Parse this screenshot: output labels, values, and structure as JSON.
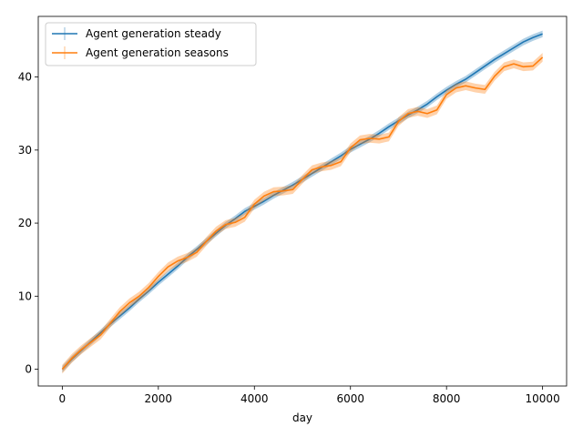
{
  "chart_data": {
    "type": "line",
    "title": "",
    "xlabel": "day",
    "ylabel": "",
    "xlim": [
      -500,
      10500
    ],
    "ylim": [
      -2.3,
      48.3
    ],
    "x_ticks": [
      0,
      2000,
      4000,
      6000,
      8000,
      10000
    ],
    "y_ticks": [
      0,
      10,
      20,
      30,
      40
    ],
    "grid": false,
    "legend_position": "upper-left",
    "series": [
      {
        "name": "Agent generation steady",
        "color": "#1f77b4",
        "error_band": 0.45,
        "x": [
          0,
          200,
          400,
          600,
          800,
          1000,
          1200,
          1400,
          1600,
          1800,
          2000,
          2200,
          2400,
          2600,
          2800,
          3000,
          3200,
          3400,
          3600,
          3800,
          4000,
          4200,
          4400,
          4600,
          4800,
          5000,
          5200,
          5400,
          5600,
          5800,
          6000,
          6200,
          6400,
          6600,
          6800,
          7000,
          7200,
          7400,
          7600,
          7800,
          8000,
          8200,
          8400,
          8600,
          8800,
          9000,
          9200,
          9400,
          9600,
          9800,
          10000
        ],
        "y": [
          0.0,
          1.4,
          2.6,
          3.8,
          5.0,
          6.2,
          7.3,
          8.4,
          9.6,
          10.7,
          11.9,
          13.0,
          14.1,
          15.3,
          16.4,
          17.5,
          18.6,
          19.7,
          20.6,
          21.6,
          22.3,
          23.0,
          23.8,
          24.5,
          25.2,
          26.0,
          26.8,
          27.6,
          28.4,
          29.2,
          30.1,
          30.8,
          31.5,
          32.3,
          33.2,
          34.0,
          34.8,
          35.5,
          36.3,
          37.3,
          38.2,
          39.0,
          39.7,
          40.6,
          41.5,
          42.4,
          43.2,
          44.0,
          44.8,
          45.4,
          45.9
        ]
      },
      {
        "name": "Agent generation seasons",
        "color": "#ff7f0e",
        "error_band": 0.6,
        "x": [
          0,
          200,
          400,
          600,
          800,
          1000,
          1200,
          1400,
          1600,
          1800,
          2000,
          2200,
          2400,
          2600,
          2800,
          3000,
          3200,
          3400,
          3600,
          3800,
          4000,
          4200,
          4400,
          4600,
          4800,
          5000,
          5200,
          5400,
          5600,
          5800,
          6000,
          6200,
          6400,
          6600,
          6800,
          7000,
          7200,
          7400,
          7600,
          7800,
          8000,
          8200,
          8400,
          8600,
          8800,
          9000,
          9200,
          9400,
          9600,
          9800,
          10000
        ],
        "y": [
          0.0,
          1.5,
          2.7,
          3.7,
          4.7,
          6.3,
          7.9,
          9.1,
          10.0,
          11.2,
          12.7,
          14.0,
          14.8,
          15.3,
          16.0,
          17.5,
          18.9,
          19.8,
          20.1,
          20.8,
          22.6,
          23.7,
          24.3,
          24.4,
          24.6,
          26.0,
          27.3,
          27.7,
          27.9,
          28.4,
          30.3,
          31.4,
          31.6,
          31.5,
          31.8,
          33.9,
          35.0,
          35.3,
          35.0,
          35.5,
          37.6,
          38.5,
          38.8,
          38.5,
          38.3,
          40.1,
          41.4,
          41.8,
          41.4,
          41.5,
          42.7
        ]
      }
    ]
  }
}
